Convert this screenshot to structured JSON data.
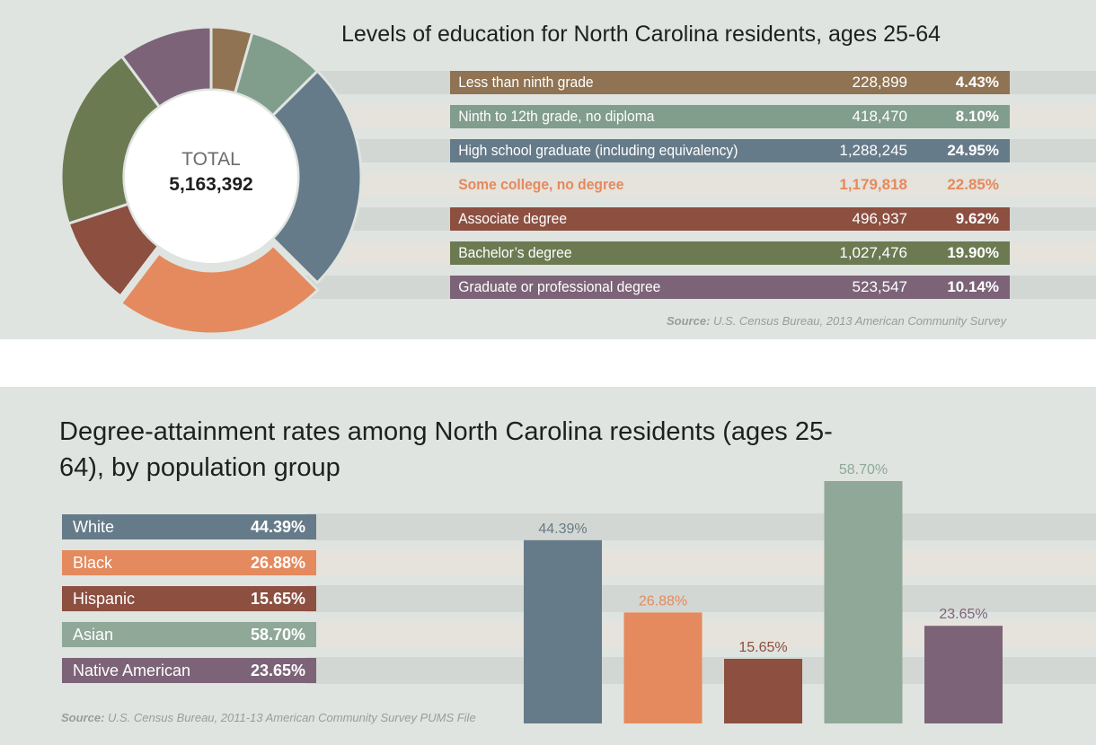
{
  "education": {
    "title": "Levels of education for North Carolina residents, ages 25-64",
    "total_label": "TOTAL",
    "total_value": "5,163,392",
    "source_prefix": "Source:",
    "source_text": " U.S. Census Bureau, 2013 American Community Survey"
  },
  "attainment": {
    "title": "Degree-attainment rates among North Carolina residents (ages 25-64), by population group",
    "source_prefix": "Source:",
    "source_text": " U.S. Census Bureau, 2011-13 American Community Survey PUMS File"
  },
  "chart_data": [
    {
      "type": "pie",
      "title": "Levels of education for North Carolina residents, ages 25-64",
      "categories": [
        "Less than ninth grade",
        "Ninth to 12th grade, no diploma",
        "High school graduate (including equivalency)",
        "Some college, no degree",
        "Associate degree",
        "Bachelor’s degree",
        "Graduate or professional degree"
      ],
      "counts": [
        "228,899",
        "418,470",
        "1,288,245",
        "1,179,818",
        "496,937",
        "1,027,476",
        "523,547"
      ],
      "percent_labels": [
        "4.43%",
        "8.10%",
        "24.95%",
        "22.85%",
        "9.62%",
        "19.90%",
        "10.14%"
      ],
      "values": [
        4.43,
        8.1,
        24.95,
        22.85,
        9.62,
        19.9,
        10.14
      ],
      "colors": [
        "#8f7352",
        "#819d8b",
        "#667b89",
        "#e48a5e",
        "#8c4f40",
        "#6c7a52",
        "#7c6378"
      ]
    },
    {
      "type": "bar",
      "title": "Degree-attainment rates among North Carolina residents (ages 25-64), by population group",
      "categories": [
        "White",
        "Black",
        "Hispanic",
        "Asian",
        "Native American"
      ],
      "values": [
        44.39,
        26.88,
        15.65,
        58.7,
        23.65
      ],
      "value_labels": [
        "44.39%",
        "26.88%",
        "15.65%",
        "58.70%",
        "23.65%"
      ],
      "colors": [
        "#667b89",
        "#e48a5e",
        "#8c4f40",
        "#8fa898",
        "#7c6378"
      ],
      "ylim": [
        0,
        60
      ]
    }
  ]
}
